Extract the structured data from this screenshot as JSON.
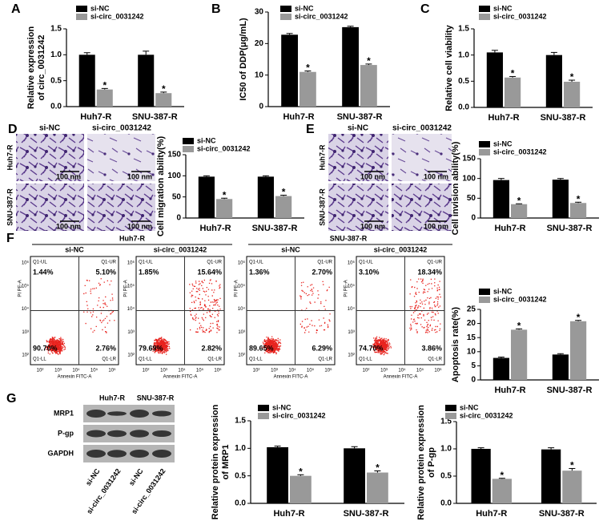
{
  "panel_labels": [
    "A",
    "B",
    "C",
    "D",
    "E",
    "F",
    "G"
  ],
  "chart_data": [
    {
      "type": "bar",
      "ylabel_lines": [
        "Relative expression",
        "of circ_0031242"
      ],
      "categories": [
        "Huh7-R",
        "SNU-387-R"
      ],
      "series": [
        {
          "name": "si-NC",
          "color": "#000000",
          "values": [
            1.0,
            1.0
          ],
          "errors": [
            0.04,
            0.07
          ]
        },
        {
          "name": "si-circ_0031242",
          "color": "#999999",
          "values": [
            0.33,
            0.26
          ],
          "errors": [
            0.02,
            0.02
          ],
          "significance": [
            "*",
            "*"
          ]
        }
      ],
      "ylim": [
        0,
        1.5
      ],
      "yticks": [
        {
          "value": 0,
          "label": "0.0"
        },
        {
          "value": 0.5,
          "label": "0.5"
        },
        {
          "value": 1,
          "label": "1.0"
        },
        {
          "value": 1.5,
          "label": "1.5"
        }
      ]
    },
    {
      "type": "bar",
      "ylabel_lines": [
        "IC50 of DDP(μg/mL)"
      ],
      "categories": [
        "Huh7-R",
        "SNU-387-R"
      ],
      "series": [
        {
          "name": "si-NC",
          "color": "#000000",
          "values": [
            22.8,
            25.2
          ],
          "errors": [
            0.4,
            0.3
          ]
        },
        {
          "name": "si-circ_0031242",
          "color": "#999999",
          "values": [
            11,
            13.2
          ],
          "errors": [
            0.3,
            0.3
          ],
          "significance": [
            "*",
            "*"
          ]
        }
      ],
      "ylim": [
        0,
        30
      ],
      "yticks": [
        0,
        10,
        20,
        30
      ]
    },
    {
      "type": "bar",
      "ylabel_lines": [
        "Relative cell viability"
      ],
      "categories": [
        "Huh7-R",
        "SNU-387-R"
      ],
      "series": [
        {
          "name": "si-NC",
          "color": "#000000",
          "values": [
            1.05,
            1.0
          ],
          "errors": [
            0.04,
            0.05
          ]
        },
        {
          "name": "si-circ_0031242",
          "color": "#999999",
          "values": [
            0.57,
            0.49
          ],
          "errors": [
            0.02,
            0.03
          ],
          "significance": [
            "*",
            "*"
          ]
        }
      ],
      "ylim": [
        0,
        1.5
      ],
      "yticks": [
        {
          "value": 0,
          "label": "0.0"
        },
        {
          "value": 0.5,
          "label": "0.5"
        },
        {
          "value": 1,
          "label": "1.0"
        },
        {
          "value": 1.5,
          "label": "1.5"
        }
      ]
    },
    {
      "type": "bar",
      "ylabel_lines": [
        "Cell migration ability(%)"
      ],
      "categories": [
        "Huh7-R",
        "SNU-387-R"
      ],
      "series": [
        {
          "name": "si-NC",
          "color": "#000000",
          "values": [
            98,
            98
          ],
          "errors": [
            2,
            2
          ]
        },
        {
          "name": "si-circ_0031242",
          "color": "#999999",
          "values": [
            45,
            52
          ],
          "errors": [
            2,
            2
          ],
          "significance": [
            "*",
            "*"
          ]
        }
      ],
      "ylim": [
        0,
        150
      ],
      "yticks": [
        0,
        50,
        100,
        150
      ]
    },
    {
      "type": "bar",
      "ylabel_lines": [
        "Cell invision ability(%)"
      ],
      "categories": [
        "Huh7-R",
        "SNU-387-R"
      ],
      "series": [
        {
          "name": "si-NC",
          "color": "#000000",
          "values": [
            96,
            97
          ],
          "errors": [
            4,
            3
          ]
        },
        {
          "name": "si-circ_0031242",
          "color": "#999999",
          "values": [
            35,
            38
          ],
          "errors": [
            1,
            2
          ],
          "significance": [
            "*",
            "*"
          ]
        }
      ],
      "ylim": [
        0,
        150
      ],
      "yticks": [
        0,
        50,
        100,
        150
      ]
    },
    {
      "type": "bar",
      "ylabel_lines": [
        "Apoptosis rate(%)"
      ],
      "categories": [
        "Huh7-R",
        "SNU-387-R"
      ],
      "series": [
        {
          "name": "si-NC",
          "color": "#000000",
          "values": [
            7.8,
            9.0
          ],
          "errors": [
            0.3,
            0.3
          ]
        },
        {
          "name": "si-circ_0031242",
          "color": "#999999",
          "values": [
            17.8,
            20.8
          ],
          "errors": [
            0.3,
            0.3
          ],
          "significance": [
            "*",
            "*"
          ]
        }
      ],
      "ylim": [
        0,
        25
      ],
      "yticks": [
        0,
        5,
        10,
        15,
        20,
        25
      ]
    },
    {
      "type": "bar",
      "ylabel_lines": [
        "Relative protein expression",
        "of MRP1"
      ],
      "categories": [
        "Huh7-R",
        "SNU-387-R"
      ],
      "series": [
        {
          "name": "si-NC",
          "color": "#000000",
          "values": [
            1.02,
            1.0
          ],
          "errors": [
            0.02,
            0.03
          ]
        },
        {
          "name": "si-circ_0031242",
          "color": "#999999",
          "values": [
            0.5,
            0.56
          ],
          "errors": [
            0.02,
            0.03
          ],
          "significance": [
            "*",
            "*"
          ]
        }
      ],
      "ylim": [
        0,
        1.5
      ],
      "yticks": [
        {
          "value": 0,
          "label": "0.0"
        },
        {
          "value": 0.5,
          "label": "0.5"
        },
        {
          "value": 1,
          "label": "1.0"
        },
        {
          "value": 1.5,
          "label": "1.5"
        }
      ]
    },
    {
      "type": "bar",
      "ylabel_lines": [
        "Relative protein expression",
        "of P-gp"
      ],
      "categories": [
        "Huh7-R",
        "SNU-387-R"
      ],
      "series": [
        {
          "name": "si-NC",
          "color": "#000000",
          "values": [
            1.0,
            0.99
          ],
          "errors": [
            0.02,
            0.03
          ]
        },
        {
          "name": "si-circ_0031242",
          "color": "#999999",
          "values": [
            0.45,
            0.6
          ],
          "errors": [
            0.01,
            0.04
          ],
          "significance": [
            "*",
            "*"
          ]
        }
      ],
      "ylim": [
        0,
        1.5
      ],
      "yticks": [
        {
          "value": 0,
          "label": "0.0"
        },
        {
          "value": 0.5,
          "label": "0.5"
        },
        {
          "value": 1,
          "label": "1.0"
        },
        {
          "value": 1.5,
          "label": "1.5"
        }
      ]
    }
  ],
  "migration": {
    "columns": [
      "si-NC",
      "si-circ_0031242"
    ],
    "rows": [
      "Huh7-R",
      "SNU-387-R"
    ],
    "scale_bar": "100 nm"
  },
  "invasion": {
    "columns": [
      "si-NC",
      "si-circ_0031242"
    ],
    "rows": [
      "Huh7-R",
      "SNU-387-R"
    ],
    "scale_bar": "100 nm"
  },
  "flow": {
    "groups": [
      "Huh7-R",
      "SNU-387-R"
    ],
    "plots": [
      {
        "title": "si-NC",
        "UL": "1.44%",
        "UR": "5.10%",
        "LL": "90.70%",
        "LR": "2.76%"
      },
      {
        "title": "si-circ_0031242",
        "UL": "1.85%",
        "UR": "15.64%",
        "LL": "79.69%",
        "LR": "2.82%"
      },
      {
        "title": "si-NC",
        "UL": "1.36%",
        "UR": "2.70%",
        "LL": "89.65%",
        "LR": "6.29%"
      },
      {
        "title": "si-circ_0031242",
        "UL": "3.10%",
        "UR": "18.34%",
        "LL": "74.70%",
        "LR": "3.86%"
      }
    ],
    "quadrants": {
      "UL": "Q1-UL",
      "UR": "Q1-UR",
      "LL": "Q1-LL",
      "LR": "Q1-LR"
    },
    "x_label": "Annexin FITC-A",
    "y_label": "PI PE-A",
    "ticks": [
      "10²",
      "10³",
      "10⁴",
      "10⁵",
      "10⁶"
    ]
  },
  "western": {
    "groups": [
      "Huh7-R",
      "SNU-387-R"
    ],
    "rows": [
      "MRP1",
      "P-gp",
      "GAPDH"
    ],
    "lanes": [
      "si-NC",
      "si-circ_0031242",
      "si-NC",
      "si-circ_0031242"
    ]
  }
}
